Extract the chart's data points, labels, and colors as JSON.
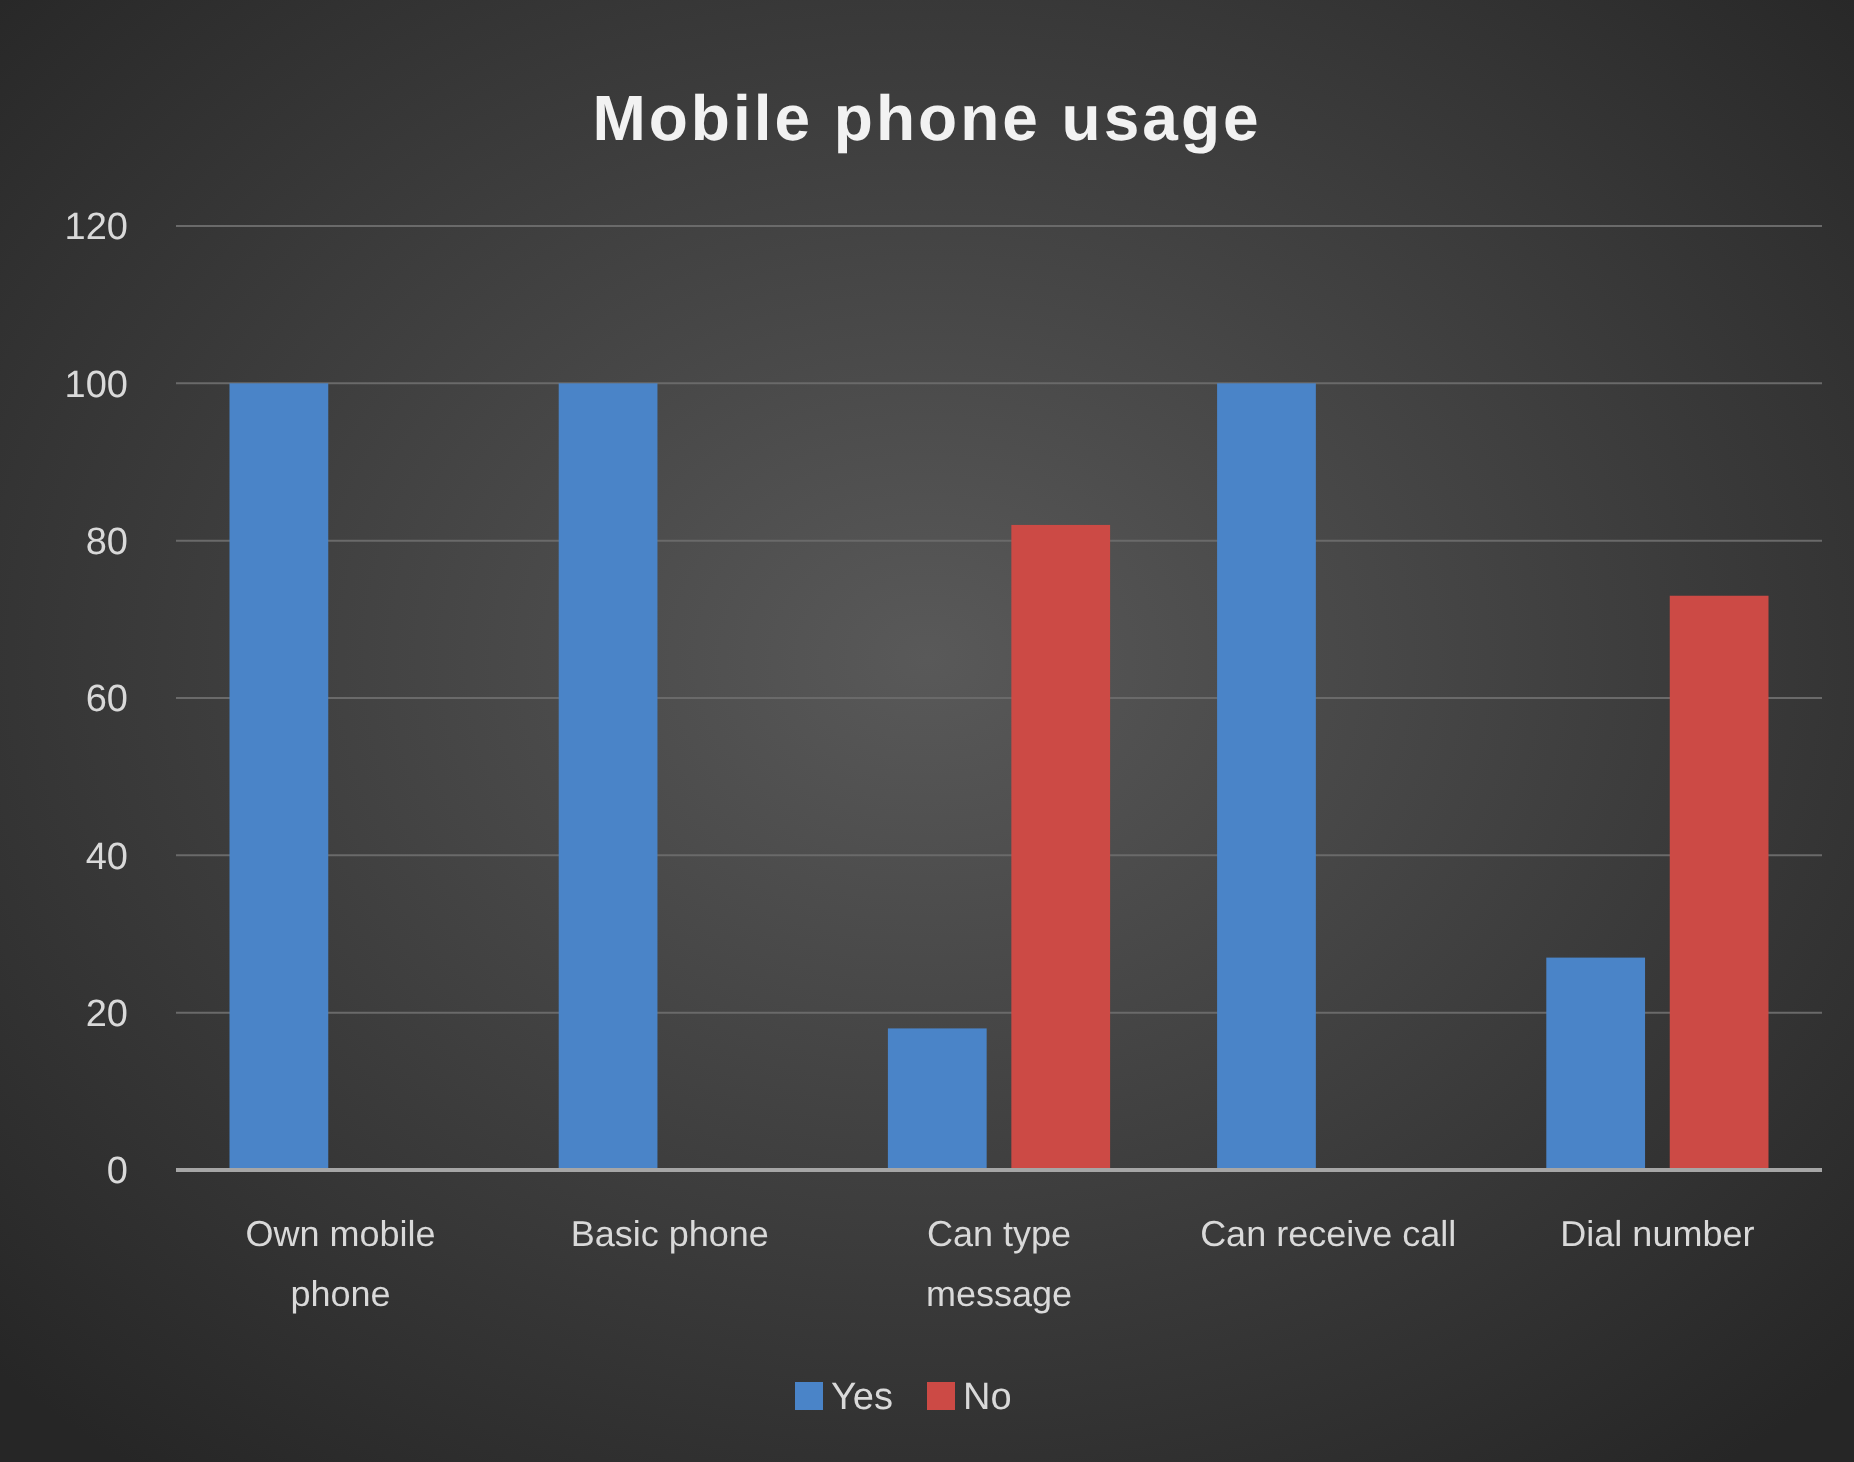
{
  "chart_data": {
    "type": "bar",
    "title": "Mobile phone usage",
    "categories": [
      "Own mobile phone",
      "Basic phone",
      "Can type message",
      "Can receive call",
      "Dial number"
    ],
    "series": [
      {
        "name": "Yes",
        "color": "#4a84c8",
        "values": [
          100,
          100,
          18,
          100,
          27
        ]
      },
      {
        "name": "No",
        "color": "#cc4a45",
        "values": [
          null,
          null,
          82,
          null,
          73
        ]
      }
    ],
    "ylim": [
      0,
      120
    ],
    "yticks": [
      0,
      20,
      40,
      60,
      80,
      100,
      120
    ],
    "grid": "y",
    "legend": "bottom"
  }
}
